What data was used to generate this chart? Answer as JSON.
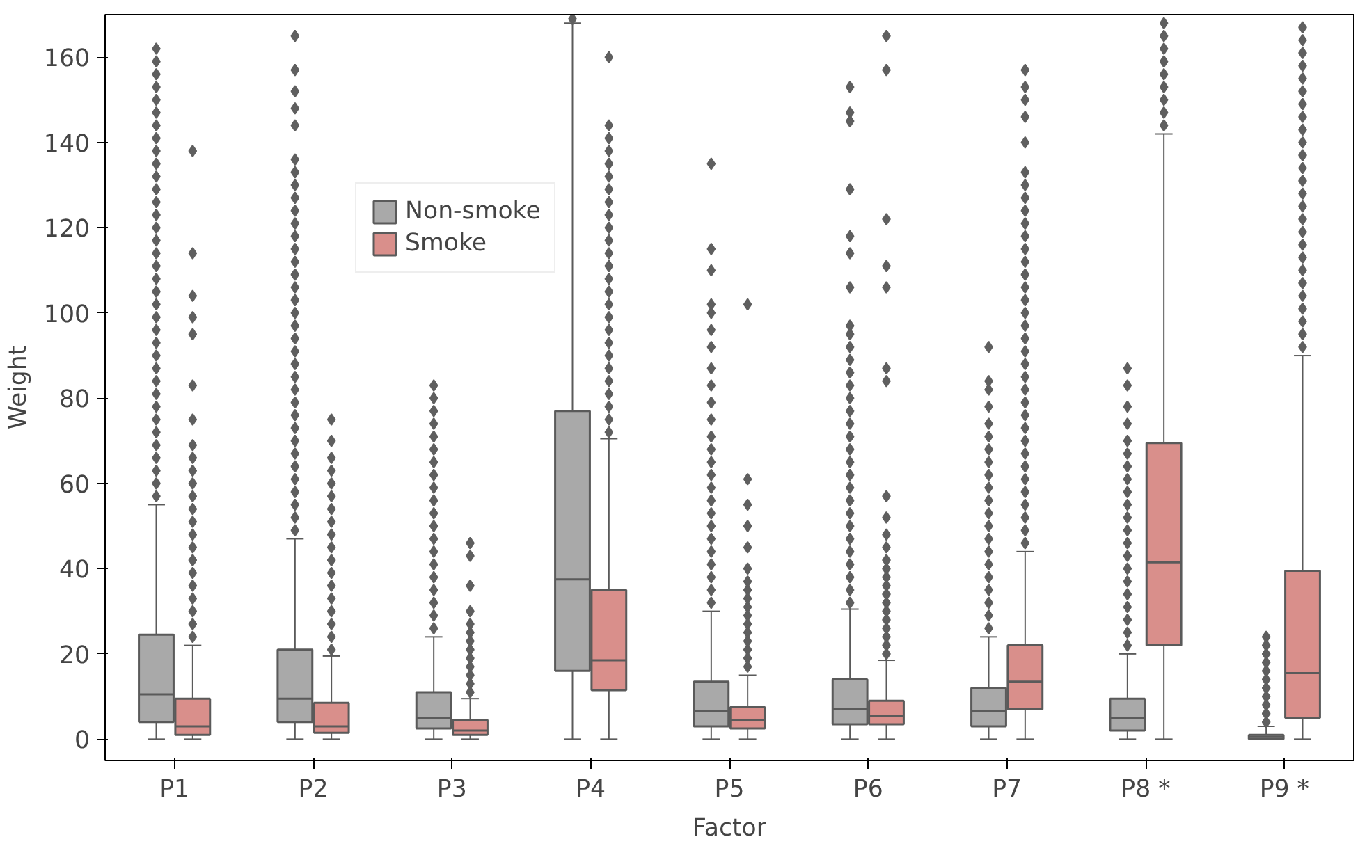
{
  "chart_data": {
    "type": "box",
    "xlabel": "Factor",
    "ylabel": "Weight",
    "categories": [
      "P1",
      "P2",
      "P3",
      "P4",
      "P5",
      "P6",
      "P7",
      "P8 *",
      "P9 *"
    ],
    "ylim": [
      -5,
      170
    ],
    "yticks": [
      0,
      20,
      40,
      60,
      80,
      100,
      120,
      140,
      160
    ],
    "grid": false,
    "legend": "top left",
    "marker": "diamond",
    "series": [
      {
        "name": "Non-smoke",
        "color": "#a9a9a9",
        "boxes": [
          {
            "low": 0,
            "q1": 4,
            "median": 10.5,
            "q3": 24.5,
            "high": 55,
            "outliers": [
              57,
              60,
              63,
              66,
              69,
              72,
              75,
              78,
              81,
              84,
              87,
              90,
              93,
              96,
              99,
              102,
              105,
              108,
              111,
              114,
              117,
              120,
              123,
              126,
              129,
              132,
              135,
              138,
              141,
              144,
              147,
              150,
              153,
              156,
              159,
              162
            ]
          },
          {
            "low": 0,
            "q1": 4,
            "median": 9.5,
            "q3": 21,
            "high": 47,
            "outliers": [
              49,
              52,
              55,
              58,
              61,
              64,
              67,
              70,
              73,
              76,
              79,
              82,
              85,
              88,
              91,
              94,
              97,
              100,
              103,
              106,
              109,
              112,
              115,
              118,
              121,
              124,
              127,
              130,
              133,
              136,
              144,
              148,
              152,
              157,
              165
            ]
          },
          {
            "low": 0,
            "q1": 2.5,
            "median": 5,
            "q3": 11,
            "high": 24,
            "outliers": [
              26,
              29,
              32,
              35,
              38,
              41,
              44,
              47,
              50,
              53,
              56,
              59,
              62,
              65,
              68,
              71,
              74,
              77,
              80,
              83
            ]
          },
          {
            "low": 0,
            "q1": 16,
            "median": 37.5,
            "q3": 77,
            "high": 168,
            "outliers": [
              169
            ]
          },
          {
            "low": 0,
            "q1": 3,
            "median": 6.5,
            "q3": 13.5,
            "high": 30,
            "outliers": [
              32,
              35,
              38,
              41,
              44,
              47,
              50,
              53,
              56,
              59,
              62,
              65,
              68,
              71,
              75,
              79,
              83,
              87,
              92,
              96,
              100,
              102,
              110,
              115,
              135
            ]
          },
          {
            "low": 0,
            "q1": 3.5,
            "median": 7,
            "q3": 14,
            "high": 30.5,
            "outliers": [
              32,
              35,
              38,
              41,
              44,
              47,
              50,
              53,
              56,
              59,
              62,
              65,
              68,
              71,
              74,
              77,
              80,
              83,
              86,
              89,
              92,
              95,
              97,
              106,
              114,
              118,
              129,
              145,
              147,
              153
            ]
          },
          {
            "low": 0,
            "q1": 3,
            "median": 6.5,
            "q3": 12,
            "high": 24,
            "outliers": [
              26,
              29,
              32,
              35,
              38,
              41,
              44,
              47,
              50,
              53,
              56,
              59,
              62,
              65,
              68,
              71,
              74,
              78,
              82,
              84,
              92
            ]
          },
          {
            "low": 0,
            "q1": 2,
            "median": 5,
            "q3": 9.5,
            "high": 20,
            "outliers": [
              22,
              25,
              28,
              31,
              34,
              37,
              40,
              43,
              46,
              49,
              52,
              55,
              58,
              61,
              64,
              67,
              70,
              74,
              78,
              83,
              87
            ]
          },
          {
            "low": 0,
            "q1": 0,
            "median": 0.5,
            "q3": 1,
            "high": 3,
            "outliers": [
              4,
              6,
              8,
              10,
              12,
              14,
              16,
              18,
              20,
              22,
              24
            ]
          }
        ]
      },
      {
        "name": "Smoke",
        "color": "#d98f8b",
        "boxes": [
          {
            "low": 0,
            "q1": 1,
            "median": 3,
            "q3": 9.5,
            "high": 22,
            "outliers": [
              24,
              27,
              30,
              33,
              36,
              39,
              42,
              45,
              48,
              51,
              54,
              57,
              60,
              63,
              66,
              69,
              75,
              83,
              95,
              99,
              104,
              114,
              138
            ]
          },
          {
            "low": 0,
            "q1": 1.5,
            "median": 3,
            "q3": 8.5,
            "high": 19.5,
            "outliers": [
              21,
              24,
              27,
              30,
              33,
              36,
              39,
              42,
              45,
              48,
              51,
              54,
              57,
              60,
              63,
              66,
              70,
              75
            ]
          },
          {
            "low": 0,
            "q1": 1,
            "median": 2,
            "q3": 4.5,
            "high": 9.5,
            "outliers": [
              11,
              13,
              15,
              17,
              19,
              21,
              23,
              25,
              27,
              30,
              36,
              43,
              46
            ]
          },
          {
            "low": 0,
            "q1": 11.5,
            "median": 18.5,
            "q3": 35,
            "high": 70.5,
            "outliers": [
              72,
              75,
              78,
              81,
              84,
              87,
              90,
              93,
              96,
              99,
              102,
              105,
              108,
              111,
              114,
              117,
              120,
              123,
              126,
              129,
              132,
              135,
              138,
              141,
              144,
              160
            ]
          },
          {
            "low": 0,
            "q1": 2.5,
            "median": 4.5,
            "q3": 7.5,
            "high": 15,
            "outliers": [
              17,
              19,
              21,
              23,
              25,
              27,
              29,
              31,
              33,
              35,
              37,
              40,
              45,
              50,
              55,
              61,
              102
            ]
          },
          {
            "low": 0,
            "q1": 3.5,
            "median": 5.5,
            "q3": 9,
            "high": 18.5,
            "outliers": [
              20,
              22,
              24,
              26,
              28,
              30,
              32,
              34,
              36,
              38,
              40,
              42,
              45,
              48,
              52,
              57,
              84,
              87,
              106,
              111,
              122,
              157,
              165
            ]
          },
          {
            "low": 0,
            "q1": 7,
            "median": 13.5,
            "q3": 22,
            "high": 44,
            "outliers": [
              46,
              49,
              52,
              55,
              58,
              61,
              64,
              67,
              70,
              73,
              76,
              79,
              82,
              85,
              88,
              91,
              94,
              97,
              100,
              103,
              106,
              109,
              112,
              115,
              118,
              121,
              124,
              127,
              130,
              133,
              140,
              146,
              150,
              153,
              157
            ]
          },
          {
            "low": 0,
            "q1": 22,
            "median": 41.5,
            "q3": 69.5,
            "high": 142,
            "outliers": [
              144,
              147,
              150,
              153,
              156,
              159,
              162,
              165,
              168
            ]
          },
          {
            "low": 0,
            "q1": 5,
            "median": 15.5,
            "q3": 39.5,
            "high": 90,
            "outliers": [
              92,
              95,
              98,
              101,
              104,
              107,
              110,
              113,
              116,
              119,
              122,
              125,
              128,
              131,
              134,
              137,
              140,
              143,
              146,
              149,
              152,
              155,
              158,
              161,
              164,
              167
            ]
          }
        ]
      }
    ]
  }
}
